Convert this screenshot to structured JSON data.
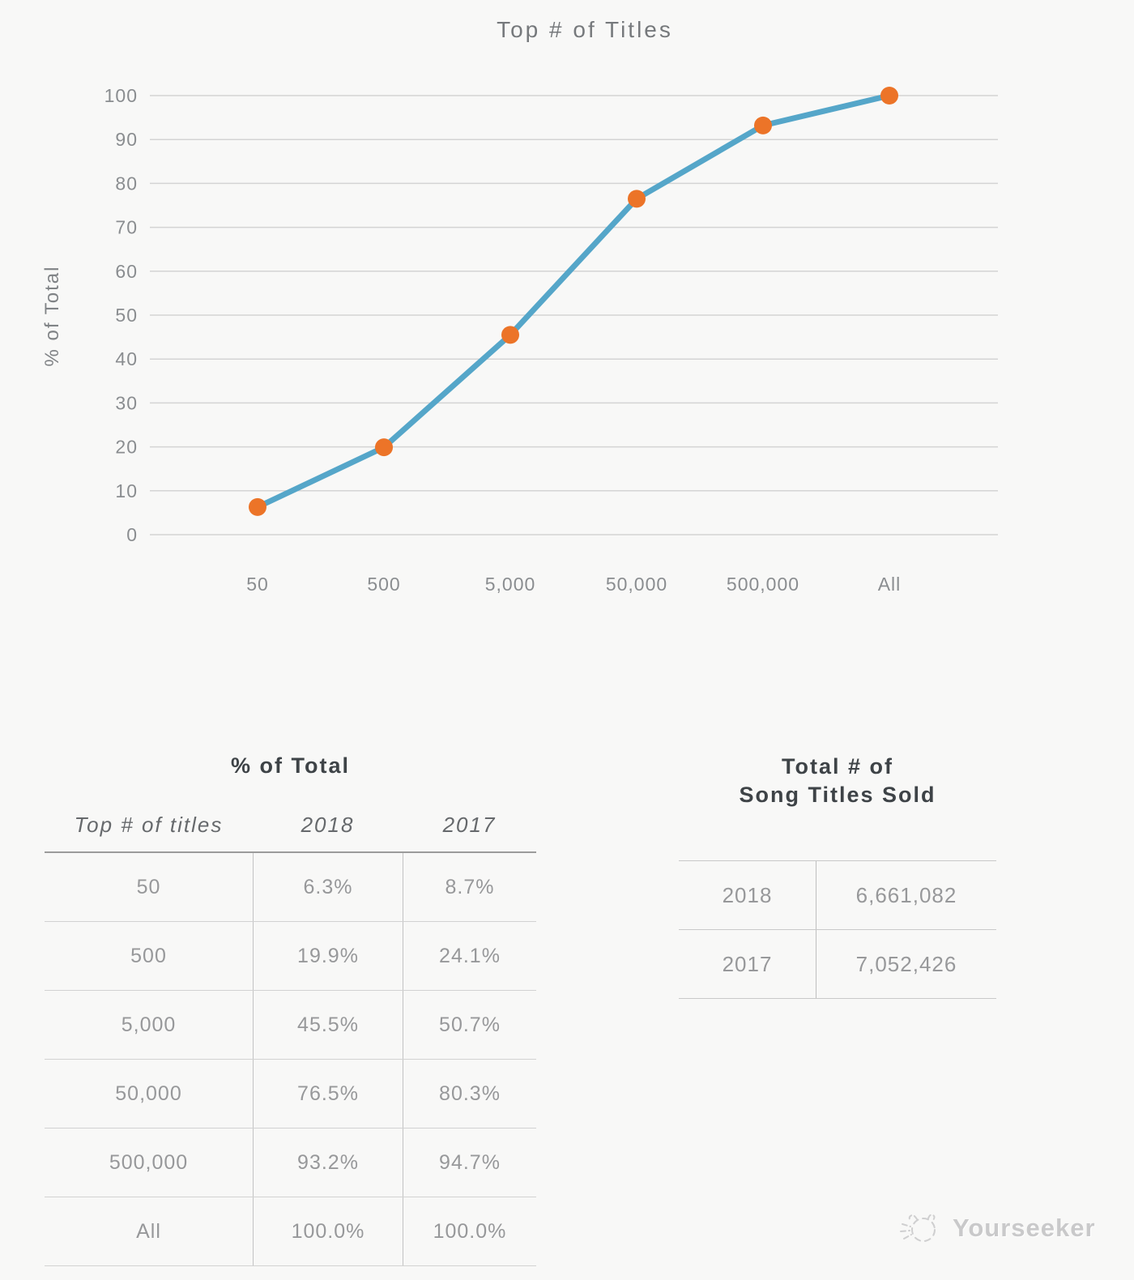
{
  "page": {
    "background": "#f8f8f7"
  },
  "chart_data": {
    "type": "line",
    "title": "Top # of Titles",
    "ylabel": "% of Total",
    "xlabel": "",
    "categories": [
      "50",
      "500",
      "5,000",
      "50,000",
      "500,000",
      "All"
    ],
    "series": [
      {
        "name": "2018",
        "values": [
          6.3,
          19.9,
          45.5,
          76.5,
          93.2,
          100.0
        ]
      }
    ],
    "ylim": [
      0,
      100
    ],
    "ytick_step": 10,
    "grid": "horizontal",
    "legend": "none",
    "line_color": "#55a6c9",
    "marker_color": "#ec7428",
    "gridline_color": "#d4d4d4",
    "tick_label_color": "#8a8d90",
    "title_color": "#76797c",
    "axis_title_color": "#808386"
  },
  "tables": {
    "percent_of_total": {
      "title": "% of Total",
      "columns": [
        "Top # of titles",
        "2018",
        "2017"
      ],
      "rows": [
        [
          "50",
          "6.3%",
          "8.7%"
        ],
        [
          "500",
          "19.9%",
          "24.1%"
        ],
        [
          "5,000",
          "45.5%",
          "50.7%"
        ],
        [
          "50,000",
          "76.5%",
          "80.3%"
        ],
        [
          "500,000",
          "93.2%",
          "94.7%"
        ],
        [
          "All",
          "100.0%",
          "100.0%"
        ]
      ]
    },
    "total_sold": {
      "title_line1": "Total # of",
      "title_line2": "Song Titles Sold",
      "rows": [
        [
          "2018",
          "6,661,082"
        ],
        [
          "2017",
          "7,052,426"
        ]
      ]
    }
  },
  "watermark": {
    "label": "Yourseeker",
    "icon": "cat-sketch-logo-icon"
  }
}
